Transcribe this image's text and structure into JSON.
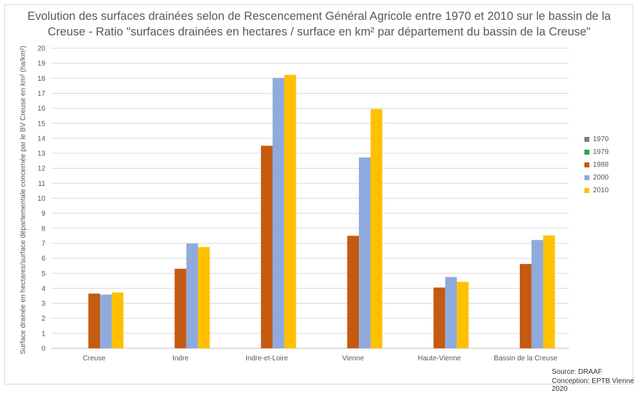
{
  "chart_data": {
    "type": "bar",
    "title_line1": "Evolution des surfaces drainées selon de Rescencement Général Agricole entre 1970 et 2010 sur le bassin de la",
    "title_line2": "Creuse - Ratio \"surfaces drainées en hectares / surface en km² par département du bassin de la Creuse\"",
    "ylabel": "Surface drainée en hectares/surface départementale concernée par le BV Creuse en km² (ha/km²)",
    "xlabel": "",
    "ylim": [
      0,
      20
    ],
    "ytick_step": 1,
    "grid": true,
    "legend_position": "right",
    "categories": [
      "Creuse",
      "Indre",
      "Indre-et-Loire",
      "Vienne",
      "Haute-Vienne",
      "Bassin de la Creuse"
    ],
    "series": [
      {
        "name": "1970",
        "color": "#808080",
        "values": [
          0,
          0,
          0,
          0,
          0,
          0
        ]
      },
      {
        "name": "1979",
        "color": "#1fa84f",
        "values": [
          0,
          0,
          0,
          0,
          0,
          0
        ]
      },
      {
        "name": "1988",
        "color": "#c55a11",
        "values": [
          3.65,
          5.3,
          13.5,
          7.5,
          4.05,
          5.62
        ]
      },
      {
        "name": "2000",
        "color": "#8faadc",
        "values": [
          3.58,
          6.98,
          18.02,
          12.72,
          4.75,
          7.22
        ]
      },
      {
        "name": "2010",
        "color": "#ffc000",
        "values": [
          3.72,
          6.75,
          18.22,
          15.95,
          4.43,
          7.52
        ]
      }
    ]
  },
  "source_text": "Source: DRAAF",
  "conception_text": "Conception: EPTB Vienne 2020"
}
